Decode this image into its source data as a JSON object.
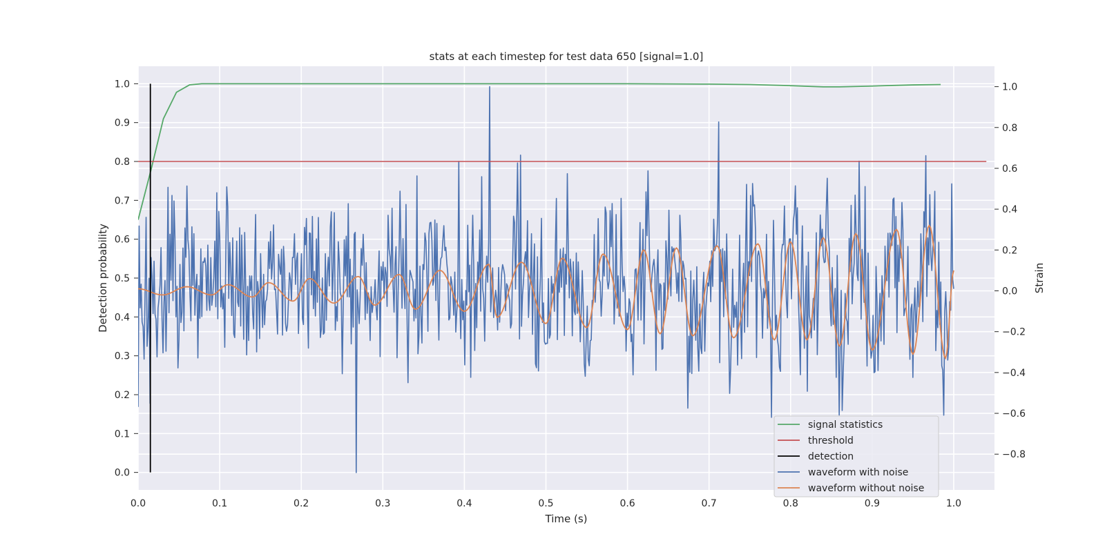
{
  "chart_data": {
    "type": "line",
    "title": "stats at each timestep for test data 650 [signal=1.0]",
    "xlabel": "Time (s)",
    "ylabel_left": "Detection probability",
    "ylabel_right": "Strain",
    "xlim": [
      0.0,
      1.05
    ],
    "ylim_left": [
      -0.045,
      1.045
    ],
    "ylim_right": [
      -0.975,
      1.1
    ],
    "x_ticks": [
      "0.0",
      "0.1",
      "0.2",
      "0.3",
      "0.4",
      "0.5",
      "0.6",
      "0.7",
      "0.8",
      "0.9",
      "1.0"
    ],
    "y_left_ticks": [
      "0.0",
      "0.1",
      "0.2",
      "0.3",
      "0.4",
      "0.5",
      "0.6",
      "0.7",
      "0.8",
      "0.9",
      "1.0"
    ],
    "y_right_ticks": [
      "−0.8",
      "−0.6",
      "−0.4",
      "−0.2",
      "0.0",
      "0.2",
      "0.4",
      "0.6",
      "0.8",
      "1.0"
    ],
    "grid": true,
    "legend_position": "bottom-right",
    "series": [
      {
        "name": "signal statistics",
        "axis": "left",
        "color": "#55a868",
        "x": [
          0.0,
          0.016,
          0.031,
          0.047,
          0.063,
          0.078,
          0.2,
          0.4,
          0.6,
          0.7,
          0.75,
          0.8,
          0.84,
          0.86,
          0.9,
          0.95,
          0.984
        ],
        "y": [
          0.65,
          0.78,
          0.91,
          0.978,
          0.997,
          1.0,
          1.0,
          1.0,
          1.0,
          0.999,
          0.998,
          0.995,
          0.992,
          0.992,
          0.994,
          0.997,
          0.998
        ]
      },
      {
        "name": "threshold",
        "axis": "left",
        "color": "#c44e52",
        "x": [
          0.0,
          1.04
        ],
        "y": [
          0.8,
          0.8
        ]
      },
      {
        "name": "detection",
        "axis": "left",
        "color": "#000000",
        "x": [
          0.015,
          0.015
        ],
        "y": [
          0.0,
          1.0
        ]
      },
      {
        "name": "waveform with noise",
        "axis": "right",
        "color": "#4c72b0",
        "sample_count": 820,
        "x_range": [
          0.0,
          1.0
        ],
        "y_range": [
          -0.89,
          1.0
        ],
        "max_at": 0.431,
        "min_at": 0.268
      },
      {
        "name": "waveform without noise",
        "axis": "right",
        "color": "#dd8452",
        "x_range": [
          0.0,
          1.0
        ],
        "x": [
          0.0,
          0.03,
          0.06,
          0.09,
          0.11,
          0.14,
          0.16,
          0.19,
          0.21,
          0.24,
          0.27,
          0.29,
          0.32,
          0.34,
          0.37,
          0.4,
          0.43,
          0.44,
          0.47,
          0.5,
          0.52,
          0.55,
          0.57,
          0.6,
          0.62,
          0.64,
          0.66,
          0.68,
          0.71,
          0.73,
          0.76,
          0.78,
          0.8,
          0.82,
          0.84,
          0.86,
          0.88,
          0.9,
          0.93,
          0.95,
          0.97,
          0.99,
          1.0
        ],
        "y": [
          0.01,
          -0.02,
          0.02,
          -0.02,
          0.03,
          -0.03,
          0.04,
          -0.05,
          0.06,
          -0.06,
          0.07,
          -0.07,
          0.08,
          -0.09,
          0.1,
          -0.1,
          0.13,
          -0.13,
          0.14,
          -0.16,
          0.16,
          -0.18,
          0.18,
          -0.19,
          0.2,
          -0.21,
          0.21,
          -0.22,
          0.22,
          -0.23,
          0.23,
          -0.24,
          0.24,
          -0.24,
          0.26,
          -0.27,
          0.28,
          -0.29,
          0.3,
          -0.31,
          0.32,
          -0.33,
          0.1
        ]
      }
    ]
  }
}
